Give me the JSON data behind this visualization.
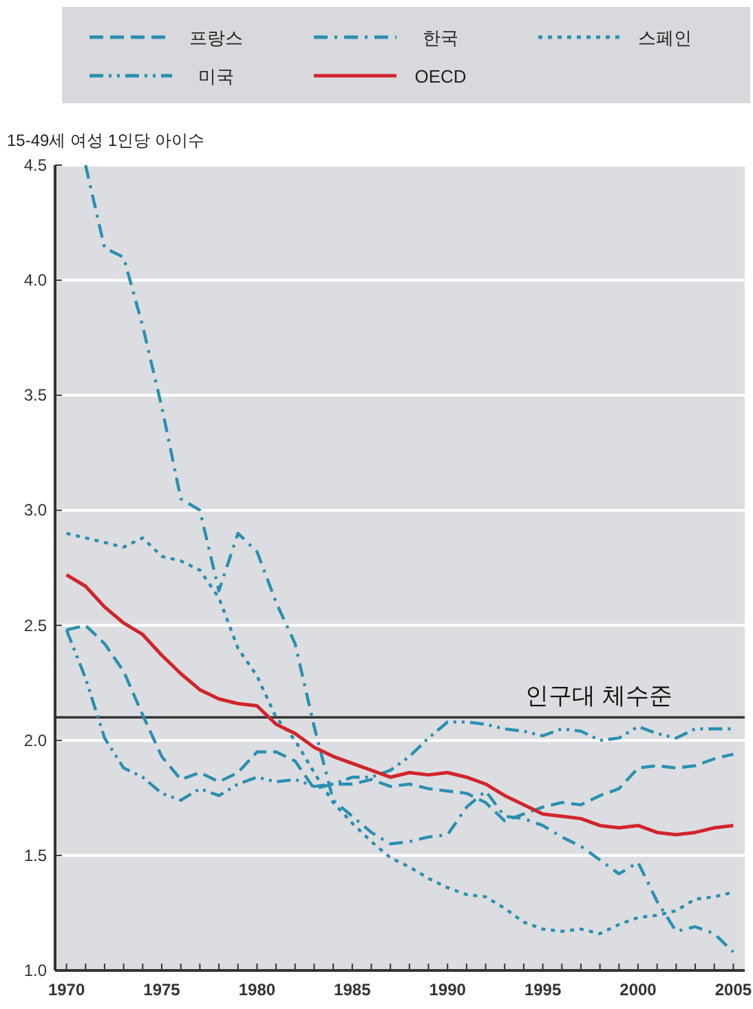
{
  "chart_data": {
    "type": "line",
    "ylabel": "15-49세 여성 1인당 아이수",
    "x": [
      1970,
      1971,
      1972,
      1973,
      1974,
      1975,
      1976,
      1977,
      1978,
      1979,
      1980,
      1981,
      1982,
      1983,
      1984,
      1985,
      1986,
      1987,
      1988,
      1989,
      1990,
      1991,
      1992,
      1993,
      1994,
      1995,
      1996,
      1997,
      1998,
      1999,
      2000,
      2001,
      2002,
      2003,
      2004,
      2005
    ],
    "series": [
      {
        "name": "프랑스",
        "color": "#2a8fb0",
        "line_style": "dashed",
        "values": [
          2.48,
          2.5,
          2.42,
          2.3,
          2.11,
          1.93,
          1.83,
          1.86,
          1.82,
          1.86,
          1.95,
          1.95,
          1.91,
          1.79,
          1.81,
          1.81,
          1.83,
          1.8,
          1.81,
          1.79,
          1.78,
          1.77,
          1.73,
          1.65,
          1.68,
          1.71,
          1.73,
          1.72,
          1.76,
          1.79,
          1.88,
          1.89,
          1.88,
          1.89,
          1.92,
          1.94
        ]
      },
      {
        "name": "한국",
        "color": "#2a8fb0",
        "line_style": "dashdot",
        "values": [
          null,
          4.5,
          4.14,
          4.1,
          3.8,
          3.45,
          3.05,
          3.0,
          2.65,
          2.9,
          2.82,
          2.6,
          2.42,
          2.06,
          1.74,
          1.67,
          1.6,
          1.55,
          1.56,
          1.58,
          1.59,
          1.71,
          1.78,
          1.67,
          1.66,
          1.63,
          1.58,
          1.54,
          1.48,
          1.42,
          1.47,
          1.3,
          1.17,
          1.19,
          1.16,
          1.08
        ]
      },
      {
        "name": "스페인",
        "color": "#2a8fb0",
        "line_style": "dotted",
        "values": [
          2.9,
          2.88,
          2.86,
          2.84,
          2.88,
          2.8,
          2.78,
          2.74,
          2.62,
          2.4,
          2.28,
          2.1,
          2.0,
          1.86,
          1.73,
          1.64,
          1.56,
          1.49,
          1.45,
          1.4,
          1.36,
          1.33,
          1.32,
          1.27,
          1.21,
          1.18,
          1.17,
          1.18,
          1.16,
          1.2,
          1.23,
          1.24,
          1.26,
          1.31,
          1.32,
          1.34
        ]
      },
      {
        "name": "미국",
        "color": "#2a8fb0",
        "line_style": "dashdotdot",
        "values": [
          2.48,
          2.27,
          2.01,
          1.88,
          1.84,
          1.77,
          1.74,
          1.79,
          1.76,
          1.81,
          1.84,
          1.82,
          1.83,
          1.8,
          1.81,
          1.84,
          1.84,
          1.87,
          1.93,
          2.01,
          2.08,
          2.08,
          2.07,
          2.05,
          2.04,
          2.02,
          2.05,
          2.04,
          2.0,
          2.01,
          2.06,
          2.03,
          2.01,
          2.05,
          2.05,
          2.05
        ]
      },
      {
        "name": "OECD",
        "color": "#d0252b",
        "line_style": "solid",
        "values": [
          2.72,
          2.67,
          2.58,
          2.51,
          2.46,
          2.37,
          2.29,
          2.22,
          2.18,
          2.16,
          2.15,
          2.07,
          2.03,
          1.97,
          1.93,
          1.9,
          1.87,
          1.84,
          1.86,
          1.85,
          1.86,
          1.84,
          1.81,
          1.76,
          1.72,
          1.68,
          1.67,
          1.66,
          1.63,
          1.62,
          1.63,
          1.6,
          1.59,
          1.6,
          1.62,
          1.63
        ]
      }
    ],
    "xlim": [
      1969.4,
      2005.6
    ],
    "xticks": [
      1970,
      {
        "value": 1971,
        "label": null
      },
      {
        "value": 1972,
        "label": null
      },
      {
        "value": 1973,
        "label": null
      },
      {
        "value": 1974,
        "label": null
      },
      1975,
      {
        "value": 1976,
        "label": null
      },
      {
        "value": 1977,
        "label": null
      },
      {
        "value": 1978,
        "label": null
      },
      {
        "value": 1979,
        "label": null
      },
      1980,
      {
        "value": 1981,
        "label": null
      },
      {
        "value": 1982,
        "label": null
      },
      {
        "value": 1983,
        "label": null
      },
      {
        "value": 1984,
        "label": null
      },
      1985,
      {
        "value": 1986,
        "label": null
      },
      {
        "value": 1987,
        "label": null
      },
      {
        "value": 1988,
        "label": null
      },
      {
        "value": 1989,
        "label": null
      },
      1990,
      {
        "value": 1991,
        "label": null
      },
      {
        "value": 1992,
        "label": null
      },
      {
        "value": 1993,
        "label": null
      },
      {
        "value": 1994,
        "label": null
      },
      1995,
      {
        "value": 1996,
        "label": null
      },
      {
        "value": 1997,
        "label": null
      },
      {
        "value": 1998,
        "label": null
      },
      {
        "value": 1999,
        "label": null
      },
      2000,
      {
        "value": 2001,
        "label": null
      },
      {
        "value": 2002,
        "label": null
      },
      {
        "value": 2003,
        "label": null
      },
      {
        "value": 2004,
        "label": null
      },
      2005
    ],
    "ylim": [
      1.0,
      4.5
    ],
    "yticks": [
      {
        "value": 1.0,
        "label": "1.0"
      },
      1.5,
      {
        "value": 2.0,
        "label": "2.0"
      },
      2.5,
      {
        "value": 3.0,
        "label": "3.0"
      },
      3.5,
      {
        "value": 4.0,
        "label": "4.0"
      },
      4.5
    ],
    "ref_lines": [
      {
        "axis": "y",
        "value": 2.1,
        "label": "인구대 체수준",
        "color": "#333333"
      }
    ],
    "grid": "y",
    "legend": "top"
  }
}
